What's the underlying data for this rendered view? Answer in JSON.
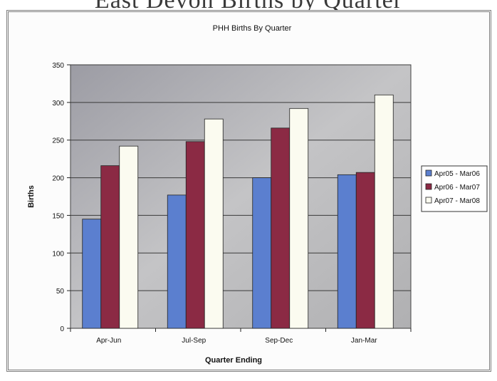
{
  "page_heading": "East Devon Births by Quarter",
  "chart_data": {
    "type": "bar",
    "title": "PHH Births By Quarter",
    "xlabel": "Quarter Ending",
    "ylabel": "Births",
    "categories": [
      "Apr-Jun",
      "Jul-Sep",
      "Sep-Dec",
      "Jan-Mar"
    ],
    "series": [
      {
        "name": "Apr05 - Mar06",
        "color": "#5b7fcf",
        "values": [
          145,
          177,
          200,
          204
        ]
      },
      {
        "name": "Apr06 - Mar07",
        "color": "#8b2a44",
        "values": [
          216,
          248,
          266,
          207
        ]
      },
      {
        "name": "Apr07 - Mar08",
        "color": "#fbfbf0",
        "values": [
          242,
          278,
          292,
          310
        ]
      }
    ],
    "ylim": [
      0,
      350
    ],
    "yticks": [
      0,
      50,
      100,
      150,
      200,
      250,
      300,
      350
    ],
    "grid": true,
    "legend_position": "right",
    "plot_background": "#b5b5b5"
  }
}
